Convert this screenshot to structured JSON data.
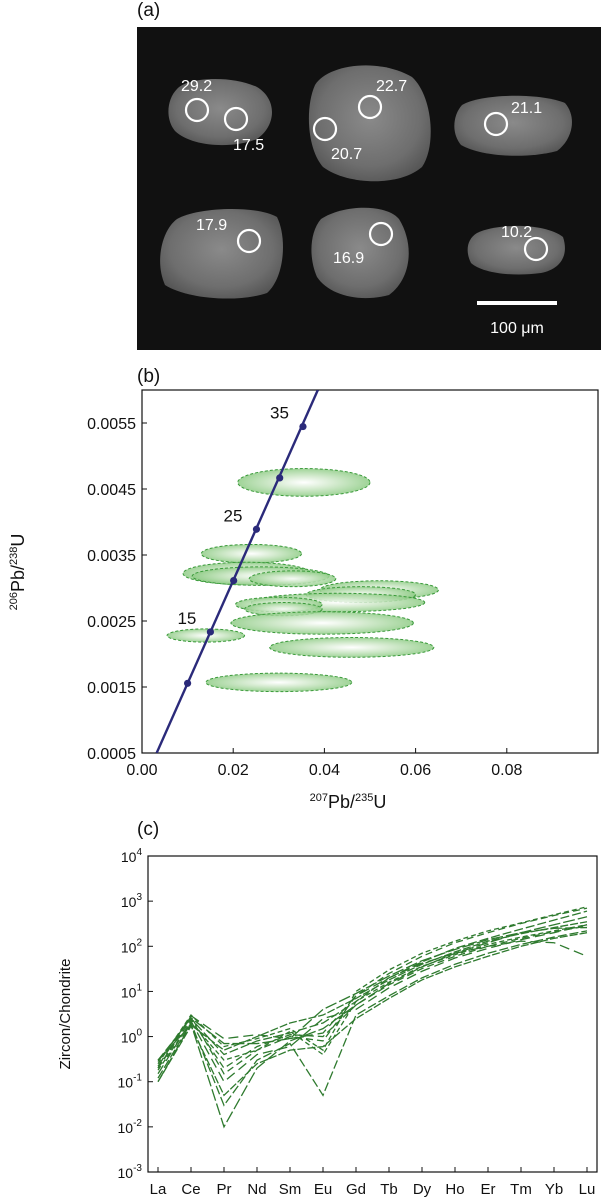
{
  "panels": {
    "a": "(a)",
    "b": "(b)",
    "c": "(c)"
  },
  "cl_image": {
    "scale_bar_label": "100 μm",
    "spots": [
      {
        "label": "29.2"
      },
      {
        "label": "17.5"
      },
      {
        "label": "22.7"
      },
      {
        "label": "20.7"
      },
      {
        "label": "21.1"
      },
      {
        "label": "17.9"
      },
      {
        "label": "16.9"
      },
      {
        "label": "10.2"
      }
    ]
  },
  "chart_data": [
    {
      "type": "scatter",
      "title": "",
      "xlabel_main": "Pb/",
      "xlabel_sup1": "207",
      "xlabel_sup2": "235",
      "xlabel_tail": "U",
      "ylabel_main": "Pb/",
      "ylabel_sup1": "206",
      "ylabel_sup2": "238",
      "ylabel_tail": "U",
      "xlim": [
        0.0,
        0.1
      ],
      "ylim": [
        0.0005,
        0.006
      ],
      "x_ticks": [
        "0.00",
        "0.02",
        "0.04",
        "0.06",
        "0.08"
      ],
      "x_tick_values": [
        0.0,
        0.02,
        0.04,
        0.06,
        0.08
      ],
      "y_ticks": [
        "0.0005",
        "0.0015",
        "0.0025",
        "0.0035",
        "0.0045",
        "0.0055"
      ],
      "y_tick_values": [
        0.0005,
        0.0015,
        0.0025,
        0.0035,
        0.0045,
        0.0055
      ],
      "concordia": {
        "color": "#2b2a7a",
        "age_points": [
          {
            "age": 10,
            "x": 0.01,
            "y": 0.001556
          },
          {
            "age": 15,
            "x": 0.015,
            "y": 0.002334
          },
          {
            "age": 20,
            "x": 0.0201,
            "y": 0.003112
          },
          {
            "age": 25,
            "x": 0.0251,
            "y": 0.00389
          },
          {
            "age": 30,
            "x": 0.0302,
            "y": 0.004668
          },
          {
            "age": 35,
            "x": 0.0353,
            "y": 0.005446
          }
        ],
        "labels": [
          {
            "age": 15,
            "text": "15"
          },
          {
            "age": 25,
            "text": "25"
          },
          {
            "age": 35,
            "text": "35"
          }
        ]
      },
      "ellipse_color": "#3a9a3a",
      "ellipses": [
        {
          "cx": 0.0355,
          "cy": 0.0046,
          "rx": 0.0145,
          "ry": 0.00021
        },
        {
          "cx": 0.024,
          "cy": 0.00352,
          "rx": 0.011,
          "ry": 0.00014
        },
        {
          "cx": 0.023,
          "cy": 0.00322,
          "rx": 0.014,
          "ry": 0.00017
        },
        {
          "cx": 0.026,
          "cy": 0.00318,
          "rx": 0.015,
          "ry": 0.00014
        },
        {
          "cx": 0.033,
          "cy": 0.00314,
          "rx": 0.0095,
          "ry": 0.00012
        },
        {
          "cx": 0.052,
          "cy": 0.00297,
          "rx": 0.013,
          "ry": 0.00014
        },
        {
          "cx": 0.048,
          "cy": 0.0029,
          "rx": 0.012,
          "ry": 0.00012
        },
        {
          "cx": 0.043,
          "cy": 0.00278,
          "rx": 0.019,
          "ry": 0.00014
        },
        {
          "cx": 0.03,
          "cy": 0.00275,
          "rx": 0.0095,
          "ry": 0.00011
        },
        {
          "cx": 0.031,
          "cy": 0.00268,
          "rx": 0.0085,
          "ry": 0.0001
        },
        {
          "cx": 0.0395,
          "cy": 0.00247,
          "rx": 0.02,
          "ry": 0.00017
        },
        {
          "cx": 0.014,
          "cy": 0.00228,
          "rx": 0.0085,
          "ry": 0.0001
        },
        {
          "cx": 0.046,
          "cy": 0.0021,
          "rx": 0.018,
          "ry": 0.00015
        },
        {
          "cx": 0.03,
          "cy": 0.00157,
          "rx": 0.016,
          "ry": 0.00014
        }
      ]
    },
    {
      "type": "line",
      "title": "",
      "ylabel": "Zircon/Chondrite",
      "ylog": true,
      "ylim": [
        0.001,
        10000
      ],
      "y_ticks": [
        {
          "base": "10",
          "exp": "4",
          "value": 10000
        },
        {
          "base": "10",
          "exp": "3",
          "value": 1000
        },
        {
          "base": "10",
          "exp": "2",
          "value": 100
        },
        {
          "base": "10",
          "exp": "1",
          "value": 10
        },
        {
          "base": "10",
          "exp": "0",
          "value": 1
        },
        {
          "base": "10",
          "exp": "-1",
          "value": 0.1
        },
        {
          "base": "10",
          "exp": "-2",
          "value": 0.01
        },
        {
          "base": "10",
          "exp": "-3",
          "value": 0.001
        }
      ],
      "categories": [
        "La",
        "Ce",
        "Pr",
        "Nd",
        "Sm",
        "Eu",
        "Gd",
        "Tb",
        "Dy",
        "Ho",
        "Er",
        "Tm",
        "Yb",
        "Lu"
      ],
      "line_color": "#2e7a2e",
      "series": [
        {
          "values": [
            0.3,
            2.5,
            0.4,
            0.8,
            1.2,
            2.0,
            6.0,
            20,
            45,
            90,
            150,
            240,
            380,
            600
          ]
        },
        {
          "values": [
            0.2,
            2.8,
            0.15,
            0.5,
            1.0,
            0.8,
            8.0,
            25,
            60,
            120,
            200,
            320,
            480,
            700
          ]
        },
        {
          "values": [
            0.1,
            1.9,
            0.01,
            0.2,
            0.8,
            1.5,
            5.0,
            15,
            35,
            70,
            120,
            200,
            300,
            450
          ]
        },
        {
          "values": [
            0.25,
            3.0,
            0.6,
            0.9,
            1.5,
            0.5,
            10.0,
            30,
            70,
            130,
            220,
            330,
            500,
            750
          ]
        },
        {
          "values": [
            0.15,
            2.2,
            0.1,
            0.4,
            0.6,
            2.5,
            4.0,
            12,
            28,
            55,
            90,
            140,
            200,
            300
          ]
        },
        {
          "values": [
            0.3,
            1.8,
            0.5,
            1.0,
            2.0,
            3.0,
            7.0,
            18,
            40,
            75,
            130,
            190,
            260,
            350
          ]
        },
        {
          "values": [
            0.12,
            2.0,
            0.03,
            0.3,
            0.7,
            0.05,
            3.0,
            8,
            20,
            40,
            70,
            110,
            160,
            220
          ]
        },
        {
          "values": [
            0.2,
            2.4,
            0.2,
            0.6,
            1.1,
            1.0,
            5.0,
            14,
            32,
            60,
            100,
            150,
            210,
            280
          ]
        },
        {
          "values": [
            0.28,
            2.6,
            0.7,
            0.7,
            0.9,
            4.0,
            9.0,
            22,
            48,
            85,
            140,
            200,
            250,
            260
          ]
        },
        {
          "values": [
            0.18,
            2.1,
            0.3,
            0.5,
            1.3,
            0.4,
            6.0,
            16,
            36,
            65,
            110,
            160,
            220,
            300
          ]
        },
        {
          "values": [
            0.22,
            2.9,
            0.9,
            1.1,
            0.9,
            1.2,
            8.0,
            20,
            42,
            70,
            100,
            130,
            120,
            60
          ]
        },
        {
          "values": [
            0.1,
            1.7,
            0.05,
            0.25,
            0.5,
            0.6,
            2.5,
            7,
            18,
            35,
            60,
            100,
            150,
            200
          ]
        }
      ]
    }
  ]
}
